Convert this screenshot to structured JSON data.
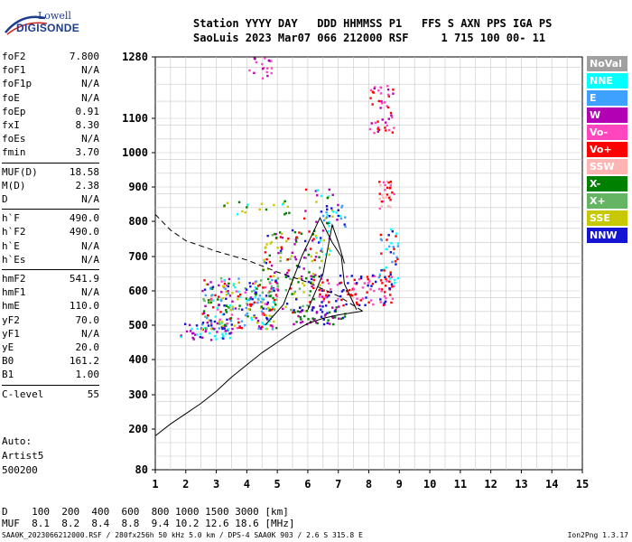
{
  "logo": {
    "line1": "Lowell",
    "line2": "DIGISONDE"
  },
  "header": {
    "row1": "Station YYYY DAY   DDD HHMMSS P1   FFS S AXN PPS IGA PS",
    "row2": "SaoLuis 2023 Mar07 066 212000 RSF     1 715 100 00- 11"
  },
  "params": [
    {
      "k": "foF2",
      "v": "7.800"
    },
    {
      "k": "foF1",
      "v": "N/A"
    },
    {
      "k": "foF1p",
      "v": "N/A"
    },
    {
      "k": "foE",
      "v": "N/A"
    },
    {
      "k": "foEp",
      "v": "0.91"
    },
    {
      "k": "fxI",
      "v": "8.30"
    },
    {
      "k": "foEs",
      "v": "N/A"
    },
    {
      "k": "fmin",
      "v": "3.70"
    },
    {
      "k": "MUF(D)",
      "v": "18.58"
    },
    {
      "k": "M(D)",
      "v": "2.38"
    },
    {
      "k": "D",
      "v": "N/A"
    },
    {
      "k": "h`F",
      "v": "490.0"
    },
    {
      "k": "h`F2",
      "v": "490.0"
    },
    {
      "k": "h`E",
      "v": "N/A"
    },
    {
      "k": "h`Es",
      "v": "N/A"
    },
    {
      "k": "hmF2",
      "v": "541.9"
    },
    {
      "k": "hmF1",
      "v": "N/A"
    },
    {
      "k": "hmE",
      "v": "110.0"
    },
    {
      "k": "yF2",
      "v": "70.0"
    },
    {
      "k": "yF1",
      "v": "N/A"
    },
    {
      "k": "yE",
      "v": "20.0"
    },
    {
      "k": "B0",
      "v": "161.2"
    },
    {
      "k": "B1",
      "v": "1.00"
    },
    {
      "k": "C-level",
      "v": "55"
    }
  ],
  "auto": {
    "l1": "Auto:",
    "l2": "Artist5",
    "l3": "500200"
  },
  "legend": [
    {
      "label": "NoVal",
      "color": "#a0a0a0"
    },
    {
      "label": "NNE",
      "color": "#00ffff"
    },
    {
      "label": "E",
      "color": "#3ea0ff"
    },
    {
      "label": "W",
      "color": "#b400b4"
    },
    {
      "label": "Vo-",
      "color": "#ff46be"
    },
    {
      "label": "Vo+",
      "color": "#ff0000"
    },
    {
      "label": "SSW",
      "color": "#ffb4b4"
    },
    {
      "label": "X-",
      "color": "#008000"
    },
    {
      "label": "X+",
      "color": "#64b464"
    },
    {
      "label": "SSE",
      "color": "#c8c800"
    },
    {
      "label": "NNW",
      "color": "#1414d2"
    }
  ],
  "bottom": {
    "row1": "D    100  200  400  600  800 1000 1500 3000 [km]",
    "row2": "MUF  8.1  8.2  8.4  8.8  9.4 10.2 12.6 18.6 [MHz]"
  },
  "footer": {
    "left": "SAA0K_2023066212000.RSF / 280fx256h 50 kHz 5.0 km / DPS-4 SAA0K 903 / 2.6 S 315.8 E",
    "right": "Ion2Png 1.3.17"
  },
  "chart_data": {
    "type": "scatter",
    "x_ticks": [
      1,
      2,
      3,
      4,
      5,
      6,
      7,
      8,
      9,
      10,
      11,
      12,
      13,
      14,
      15
    ],
    "y_ticks": [
      80,
      200,
      300,
      400,
      500,
      600,
      700,
      800,
      900,
      1000,
      1100,
      1280
    ],
    "xlim": [
      1,
      15
    ],
    "ylim": [
      80,
      1280
    ],
    "grid": true,
    "traces": {
      "bottomside_profile": [
        [
          1,
          180
        ],
        [
          1.5,
          215
        ],
        [
          2,
          245
        ],
        [
          2.5,
          275
        ],
        [
          3,
          310
        ],
        [
          3.5,
          350
        ],
        [
          4,
          385
        ],
        [
          4.5,
          420
        ],
        [
          5,
          450
        ],
        [
          5.5,
          480
        ],
        [
          6,
          505
        ],
        [
          6.5,
          520
        ],
        [
          7,
          530
        ],
        [
          7.8,
          541
        ]
      ],
      "topside_profile": [
        [
          1,
          820
        ],
        [
          1.5,
          775
        ],
        [
          2,
          745
        ],
        [
          3,
          715
        ],
        [
          4,
          690
        ],
        [
          5,
          655
        ],
        [
          5.5,
          640
        ],
        [
          6,
          625
        ],
        [
          6.5,
          605
        ],
        [
          7,
          585
        ],
        [
          7.8,
          541
        ]
      ],
      "trace_line_a": [
        [
          4.6,
          500
        ],
        [
          5.2,
          560
        ],
        [
          5.8,
          700
        ],
        [
          6.4,
          810
        ],
        [
          6.8,
          740
        ],
        [
          7.1,
          700
        ],
        [
          7.2,
          620
        ],
        [
          7.6,
          545
        ]
      ],
      "trace_line_b": [
        [
          6,
          545
        ],
        [
          6.5,
          650
        ],
        [
          6.8,
          790
        ],
        [
          7.0,
          740
        ],
        [
          7.2,
          680
        ]
      ]
    },
    "echo_clusters": [
      {
        "x": [
          1.8,
          3.5
        ],
        "y": [
          455,
          510
        ],
        "n": 50,
        "colors": [
          "#1414d2",
          "#00ffff",
          "#b400b4"
        ]
      },
      {
        "x": [
          2.5,
          5
        ],
        "y": [
          490,
          640
        ],
        "n": 260,
        "colors": [
          "#c8c800",
          "#1414d2",
          "#b400b4",
          "#008000",
          "#ff0000",
          "#00ffff",
          "#ff46be",
          "#64b464",
          "#3ea0ff"
        ]
      },
      {
        "x": [
          4.5,
          6.5
        ],
        "y": [
          540,
          780
        ],
        "n": 160,
        "colors": [
          "#c8c800",
          "#008000",
          "#1414d2",
          "#b400b4",
          "#ff0000",
          "#64b464"
        ]
      },
      {
        "x": [
          5.5,
          7.2
        ],
        "y": [
          505,
          560
        ],
        "n": 60,
        "colors": [
          "#b400b4",
          "#1414d2",
          "#008000"
        ]
      },
      {
        "x": [
          6.3,
          8.8
        ],
        "y": [
          560,
          650
        ],
        "n": 110,
        "colors": [
          "#ff0000",
          "#ff46be",
          "#1414d2"
        ]
      },
      {
        "x": [
          8.3,
          9.0
        ],
        "y": [
          620,
          790
        ],
        "n": 40,
        "colors": [
          "#00ffff",
          "#3ea0ff",
          "#1414d2",
          "#ff0000"
        ]
      },
      {
        "x": [
          8.3,
          8.8
        ],
        "y": [
          840,
          920
        ],
        "n": 30,
        "colors": [
          "#ff46be",
          "#ffb4b4",
          "#ff0000"
        ]
      },
      {
        "x": [
          8.0,
          8.8
        ],
        "y": [
          1060,
          1200
        ],
        "n": 45,
        "colors": [
          "#ff46be",
          "#b400b4",
          "#ff0000"
        ]
      },
      {
        "x": [
          6.2,
          6.8
        ],
        "y": [
          700,
          900
        ],
        "n": 25,
        "colors": [
          "#b400b4",
          "#c8c800",
          "#00ffff"
        ]
      },
      {
        "x": [
          6.4,
          7.2
        ],
        "y": [
          780,
          850
        ],
        "n": 25,
        "colors": [
          "#00ffff",
          "#3ea0ff",
          "#1414d2"
        ]
      },
      {
        "x": [
          4.0,
          4.8
        ],
        "y": [
          1220,
          1280
        ],
        "n": 18,
        "colors": [
          "#b400b4",
          "#ff46be"
        ]
      },
      {
        "x": [
          3.0,
          5.5
        ],
        "y": [
          820,
          860
        ],
        "n": 18,
        "colors": [
          "#c8c800",
          "#008000",
          "#00ffff"
        ]
      },
      {
        "x": [
          5.0,
          7.0
        ],
        "y": [
          700,
          900
        ],
        "n": 14,
        "colors": [
          "#b400b4",
          "#008000",
          "#ff0000"
        ]
      }
    ]
  }
}
